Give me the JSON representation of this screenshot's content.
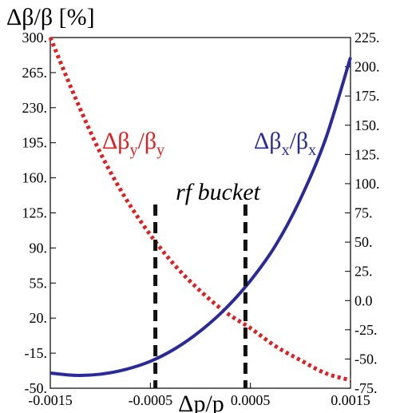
{
  "chart_data": {
    "type": "line",
    "ylabel_left": "Δβ/β [%]",
    "xlabel": "Δp/p",
    "xlim": [
      -0.0015,
      0.0015
    ],
    "x_ticks": [
      "-0.0015",
      "-0.0005",
      "0.0005",
      "0.0015"
    ],
    "x_tick_values": [
      -0.0015,
      -0.0005,
      0.0005,
      0.0015
    ],
    "ylim_left": [
      -50,
      300
    ],
    "y_left_ticks": [
      "-50.",
      "-15.",
      "20.",
      "55.",
      "90.",
      "125.",
      "160.",
      "195.",
      "230.",
      "265.",
      "300."
    ],
    "y_left_tick_values": [
      -50,
      -15,
      20,
      55,
      90,
      125,
      160,
      195,
      230,
      265,
      300
    ],
    "ylim_right": [
      -75,
      225
    ],
    "y_right_ticks": [
      "-75.",
      "-50.",
      "-25.",
      "0.0",
      "25.",
      "50.",
      "75.",
      "100.",
      "125.",
      "150.",
      "175.",
      "200.",
      "225."
    ],
    "y_right_tick_values": [
      -75,
      -50,
      -25,
      0,
      25,
      50,
      75,
      100,
      125,
      150,
      175,
      200,
      225
    ],
    "grid": false,
    "series": [
      {
        "name": "Δβy/βy",
        "label_main": "Δβ",
        "label_sub1": "y",
        "label_mid": "/β",
        "label_sub2": "y",
        "color": "#e02020",
        "style": "dotted",
        "axis": "left",
        "x": [
          -0.0015,
          -0.00125,
          -0.001,
          -0.00075,
          -0.0005,
          -0.00025,
          0.0,
          0.00025,
          0.0005,
          0.00075,
          0.001,
          0.00125,
          0.0015
        ],
        "values": [
          300,
          240,
          185,
          140,
          103,
          72,
          47,
          26,
          10,
          -8,
          -22,
          -35,
          -42
        ]
      },
      {
        "name": "Δβx/βx",
        "label_main": "Δβ",
        "label_sub1": "x",
        "label_mid": "/β",
        "label_sub2": "x",
        "color": "#2a2a9a",
        "style": "solid",
        "axis": "right",
        "x": [
          -0.0015,
          -0.00125,
          -0.001,
          -0.00075,
          -0.0005,
          -0.00025,
          0.0,
          0.00025,
          0.0005,
          0.00075,
          0.001,
          0.00125,
          0.0015
        ],
        "values": [
          -62,
          -64,
          -63,
          -59,
          -52,
          -41,
          -26,
          -7,
          17,
          47,
          87,
          138,
          208
        ]
      }
    ],
    "annotation": {
      "text": "rf bucket",
      "vlines_x": [
        -0.00045,
        0.00045
      ],
      "color": "#111111"
    }
  }
}
